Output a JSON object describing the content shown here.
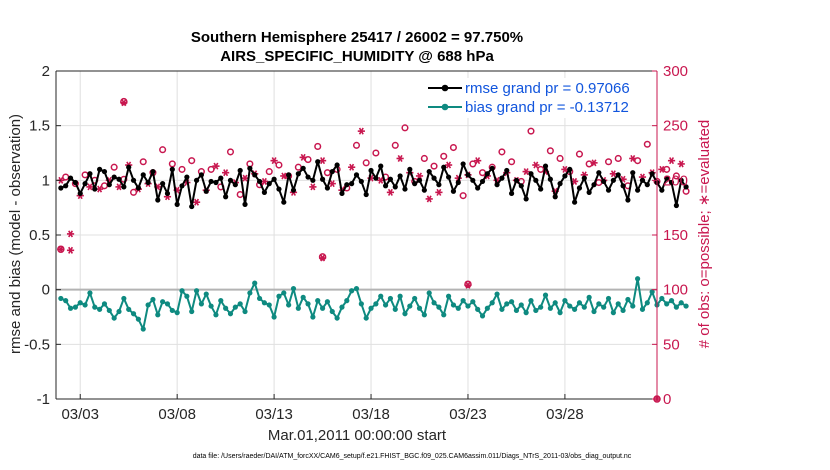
{
  "chart_data": {
    "type": "line",
    "title_line1": "Southern Hemisphere 25417 / 26002 = 97.750%",
    "title_line2": "AIRS_SPECIFIC_HUMIDITY @ 688 hPa",
    "ylabel_left": "rmse and bias (model - observation)",
    "ylabel_right": "# of obs: o=possible; ∗=evaluated",
    "xlabel": "Mar.01,2011 00:00:00 start",
    "footnote": "data file: /Users/raeder/DAI/ATM_forcXX/CAM6_setup/f.e21.FHIST_BGC.f09_025.CAM6assim.011/Diags_NTrS_2011-03/obs_diag_output.nc",
    "ylim_left": [
      -1,
      2
    ],
    "yticks_left": [
      "-1",
      "-0.5",
      "0",
      "0.5",
      "1",
      "1.5",
      "2"
    ],
    "ylim_right": [
      0,
      300
    ],
    "yticks_right": [
      "0",
      "50",
      "100",
      "150",
      "200",
      "250",
      "300"
    ],
    "xlim_days": [
      0.75,
      31.75
    ],
    "xticks": [
      {
        "day": 2,
        "label": "03/03"
      },
      {
        "day": 7,
        "label": "03/08"
      },
      {
        "day": 12,
        "label": "03/13"
      },
      {
        "day": 17,
        "label": "03/18"
      },
      {
        "day": 22,
        "label": "03/23"
      },
      {
        "day": 27,
        "label": "03/28"
      }
    ],
    "legend": [
      {
        "label": "rmse grand pr = 0.97066",
        "color": "#000000"
      },
      {
        "label": "bias grand pr = -0.13712",
        "color": "#0e8a80"
      }
    ],
    "colors": {
      "rmse": "#000000",
      "bias": "#0e8a80",
      "obs": "#c8174f",
      "zero_line": "#b3b3b3",
      "grid": "#e0e0e0"
    },
    "series": [
      {
        "name": "rmse",
        "values": [
          0.93,
          0.95,
          1.02,
          0.98,
          0.88,
          0.97,
          1.06,
          0.92,
          1.1,
          1.08,
          0.96,
          1.03,
          1.01,
          0.94,
          1.12,
          1.0,
          0.93,
          1.05,
          0.98,
          1.08,
          0.82,
          0.97,
          0.88,
          1.1,
          0.78,
          0.95,
          1.03,
          0.76,
          1.0,
          1.05,
          0.9,
          0.99,
          0.98,
          1.02,
          0.85,
          1.0,
          0.96,
          1.09,
          0.78,
          1.11,
          1.05,
          0.99,
          0.89,
          0.97,
          1.01,
          0.92,
          0.8,
          1.05,
          0.91,
          1.06,
          1.11,
          1.03,
          1.0,
          1.17,
          1.01,
          0.93,
          1.08,
          1.14,
          0.88,
          0.96,
          0.97,
          1.05,
          0.99,
          0.87,
          1.09,
          1.02,
          1.13,
          0.95,
          1.01,
          0.94,
          1.04,
          0.92,
          1.1,
          0.97,
          1.0,
          0.91,
          1.08,
          1.02,
          0.96,
          1.12,
          1.03,
          0.9,
          0.98,
          1.15,
          1.05,
          1.0,
          0.93,
          0.99,
          1.06,
          1.11,
          0.96,
          1.02,
          1.09,
          0.88,
          1.0,
          0.95,
          0.83,
          1.06,
          1.0,
          0.92,
          1.13,
          1.01,
          0.85,
          0.97,
          1.04,
          1.1,
          0.8,
          0.93,
          1.02,
          0.89,
          0.96,
          1.07,
          0.99,
          0.91,
          1.0,
          1.05,
          0.95,
          0.82,
          1.07,
          0.91,
          1.0,
          0.96,
          1.06,
          0.98,
          0.91,
          1.02,
          0.98,
          0.77,
          1.0,
          0.94
        ]
      },
      {
        "name": "bias",
        "values": [
          -0.08,
          -0.1,
          -0.17,
          -0.16,
          -0.12,
          -0.14,
          -0.03,
          -0.16,
          -0.18,
          -0.13,
          -0.19,
          -0.26,
          -0.2,
          -0.08,
          -0.18,
          -0.22,
          -0.27,
          -0.36,
          -0.14,
          -0.09,
          -0.23,
          -0.11,
          -0.13,
          -0.19,
          -0.21,
          -0.01,
          -0.06,
          -0.2,
          -0.01,
          -0.13,
          -0.04,
          -0.15,
          -0.23,
          -0.1,
          -0.17,
          -0.22,
          -0.16,
          -0.13,
          -0.2,
          -0.03,
          0.06,
          -0.08,
          -0.12,
          -0.14,
          -0.25,
          -0.06,
          -0.03,
          -0.14,
          0.01,
          -0.17,
          -0.07,
          -0.13,
          -0.25,
          -0.1,
          -0.17,
          -0.11,
          -0.2,
          -0.26,
          -0.16,
          -0.1,
          -0.01,
          0.01,
          -0.13,
          -0.26,
          -0.17,
          -0.13,
          -0.06,
          -0.14,
          -0.08,
          -0.18,
          -0.06,
          -0.22,
          -0.15,
          -0.08,
          -0.17,
          -0.23,
          -0.03,
          -0.12,
          -0.16,
          -0.23,
          -0.06,
          -0.14,
          -0.17,
          -0.1,
          -0.15,
          -0.11,
          -0.18,
          -0.24,
          -0.17,
          -0.12,
          -0.04,
          -0.18,
          -0.13,
          -0.11,
          -0.19,
          -0.14,
          -0.21,
          -0.1,
          -0.19,
          -0.16,
          -0.05,
          -0.17,
          -0.12,
          -0.21,
          -0.1,
          -0.15,
          -0.18,
          -0.12,
          -0.16,
          -0.07,
          -0.2,
          -0.13,
          -0.16,
          -0.08,
          -0.21,
          -0.13,
          -0.19,
          -0.09,
          -0.15,
          0.1,
          -0.18,
          -0.12,
          -0.02,
          -0.14,
          -0.08,
          -0.13,
          -0.1,
          -0.16,
          -0.12,
          -0.15
        ]
      },
      {
        "name": "obs_possible",
        "values": [
          209,
          203,
          135,
          197,
          190,
          205,
          198,
          200,
          196,
          195,
          205,
          212,
          199,
          201,
          220,
          189,
          197,
          217,
          202,
          207,
          200,
          228,
          191,
          215,
          198,
          210,
          204,
          218,
          186,
          208,
          197,
          210,
          220,
          194,
          213,
          226,
          203,
          187,
          208,
          215,
          212,
          196,
          204,
          208,
          225,
          214,
          210,
          204,
          194,
          212,
          228,
          219,
          199,
          231,
          224,
          207,
          202,
          210,
          196,
          193,
          218,
          232,
          252,
          216,
          208,
          225,
          205,
          203,
          194,
          232,
          226,
          248,
          213,
          199,
          210,
          220,
          188,
          213,
          194,
          222,
          220,
          230,
          208,
          186,
          211,
          215,
          224,
          207,
          210,
          212,
          205,
          226,
          213,
          217,
          205,
          199,
          214,
          245,
          220,
          210,
          214,
          227,
          195,
          220,
          216,
          208,
          204,
          224,
          211,
          215,
          222,
          198,
          206,
          217,
          212,
          220,
          207,
          195,
          226,
          218,
          209,
          233,
          213,
          199,
          216,
          210,
          224,
          204,
          221,
          190
        ],
        "special": [
          {
            "day": 1.0,
            "value": 137
          },
          {
            "day": 4.25,
            "value": 272
          },
          {
            "day": 14.5,
            "value": 130
          },
          {
            "day": 22.0,
            "value": 105
          },
          {
            "day": 31.75,
            "value": 0
          }
        ]
      },
      {
        "name": "obs_evaluated",
        "values": [
          200,
          197,
          136,
          193,
          186,
          200,
          194,
          196,
          192,
          190,
          200,
          207,
          194,
          196,
          214,
          184,
          192,
          211,
          197,
          202,
          194,
          222,
          185,
          209,
          191,
          204,
          198,
          212,
          180,
          202,
          191,
          204,
          213,
          189,
          207,
          219,
          198,
          182,
          202,
          209,
          206,
          191,
          199,
          203,
          218,
          208,
          204,
          198,
          189,
          206,
          221,
          213,
          194,
          225,
          218,
          201,
          197,
          204,
          191,
          188,
          212,
          226,
          245,
          210,
          202,
          219,
          200,
          198,
          189,
          226,
          220,
          241,
          207,
          194,
          204,
          214,
          183,
          207,
          189,
          216,
          214,
          224,
          202,
          181,
          205,
          209,
          218,
          201,
          204,
          206,
          200,
          220,
          207,
          211,
          200,
          194,
          208,
          238,
          214,
          204,
          208,
          221,
          190,
          214,
          210,
          202,
          199,
          218,
          205,
          209,
          216,
          193,
          200,
          211,
          206,
          214,
          201,
          190,
          220,
          212,
          203,
          227,
          207,
          194,
          210,
          204,
          218,
          199,
          215,
          185
        ],
        "special": [
          {
            "day": 1.0,
            "value": 137
          },
          {
            "day": 1.5,
            "value": 151
          },
          {
            "day": 4.25,
            "value": 271
          },
          {
            "day": 14.5,
            "value": 129
          },
          {
            "day": 22.0,
            "value": 104
          },
          {
            "day": 31.75,
            "value": 0
          }
        ]
      }
    ]
  }
}
